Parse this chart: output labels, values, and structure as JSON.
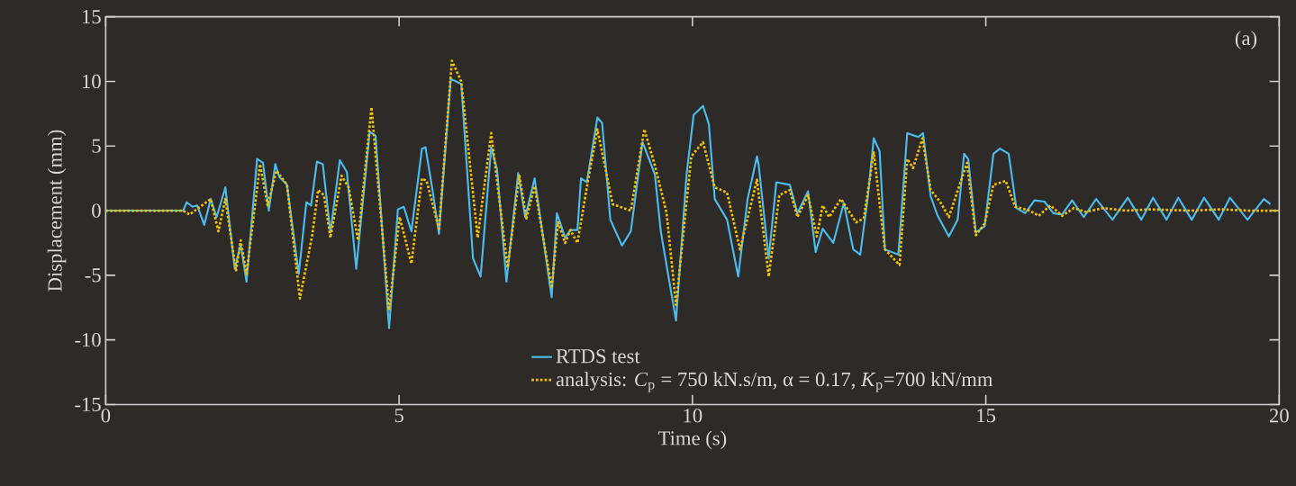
{
  "chart_data": {
    "type": "line",
    "xlabel": "Time (s)",
    "ylabel": "Displacement (mm)",
    "xlim": [
      0,
      20
    ],
    "ylim": [
      -15,
      15
    ],
    "xticks": [
      0,
      5,
      10,
      15,
      20
    ],
    "yticks": [
      -15,
      -10,
      -5,
      0,
      5,
      10,
      15
    ],
    "legend": "bottom",
    "annotations": [
      "(a)"
    ],
    "series": [
      {
        "name": "RTDS test",
        "color": "#4cbcee",
        "line_style": "solid",
        "x": [
          0,
          1.32,
          1.38,
          1.48,
          1.56,
          1.68,
          1.79,
          1.89,
          2.04,
          2.2,
          2.3,
          2.4,
          2.58,
          2.68,
          2.78,
          2.89,
          2.96,
          3.09,
          3.29,
          3.42,
          3.5,
          3.6,
          3.7,
          3.83,
          3.99,
          4.11,
          4.27,
          4.5,
          4.6,
          4.83,
          4.98,
          5.08,
          5.21,
          5.32,
          5.39,
          5.45,
          5.57,
          5.68,
          5.88,
          6.06,
          6.26,
          6.39,
          6.57,
          6.67,
          6.83,
          7.03,
          7.15,
          7.31,
          7.44,
          7.6,
          7.69,
          7.83,
          7.92,
          8.04,
          8.1,
          8.2,
          8.38,
          8.46,
          8.6,
          8.8,
          8.95,
          9.15,
          9.36,
          9.46,
          9.72,
          9.9,
          10.02,
          10.18,
          10.28,
          10.38,
          10.59,
          10.78,
          10.94,
          11.1,
          11.13,
          11.3,
          11.43,
          11.66,
          11.79,
          11.97,
          12.1,
          12.22,
          12.4,
          12.58,
          12.74,
          12.86,
          12.99,
          13.09,
          13.19,
          13.28,
          13.51,
          13.66,
          13.85,
          13.93,
          14.06,
          14.18,
          14.37,
          14.52,
          14.63,
          14.7,
          14.83,
          14.98,
          15.13,
          15.24,
          15.39,
          15.52,
          15.67,
          15.83,
          16.0,
          16.15,
          16.3,
          16.47,
          16.67,
          16.88,
          17.16,
          17.42,
          17.65,
          17.85,
          18.08,
          18.28,
          18.51,
          18.72,
          18.97,
          19.16,
          19.46,
          19.74,
          19.85
        ],
        "values": [
          0,
          0,
          0.65,
          0.3,
          0.4,
          -1.1,
          0.9,
          -0.5,
          1.8,
          -4.5,
          -2.6,
          -5.5,
          4.0,
          3.7,
          0,
          3.6,
          2.6,
          2.0,
          -4.9,
          0.65,
          0.4,
          3.8,
          3.6,
          -1.7,
          3.9,
          3.0,
          -4.5,
          6.1,
          5.8,
          -9.1,
          0.1,
          0.3,
          -1.6,
          2.3,
          4.8,
          4.9,
          1.6,
          -1.8,
          10.2,
          9.8,
          -3.7,
          -5.1,
          4.9,
          3.2,
          -5.5,
          2.9,
          -0.5,
          2.5,
          -1.6,
          -6.7,
          -0.2,
          -2.1,
          -1.5,
          -1.5,
          2.5,
          2.2,
          7.2,
          6.8,
          -0.7,
          -2.7,
          -1.6,
          5.3,
          2.8,
          -1.6,
          -8.5,
          2.8,
          7.4,
          8.1,
          6.7,
          0.9,
          -0.7,
          -5.1,
          0.9,
          4.2,
          3.5,
          -3.7,
          2.2,
          2.0,
          -0.2,
          1.5,
          -3.2,
          -1.4,
          -2.5,
          0.6,
          -3.0,
          -3.4,
          1.1,
          5.6,
          4.6,
          -3.0,
          -3.4,
          6.0,
          5.7,
          6.0,
          1.1,
          -0.4,
          -2.0,
          -0.7,
          4.4,
          4.0,
          -1.7,
          -1.2,
          4.4,
          4.8,
          4.4,
          0.2,
          -0.2,
          0.8,
          0.7,
          -0.2,
          -0.3,
          0.8,
          -0.5,
          0.9,
          -0.7,
          1.0,
          -0.7,
          1.0,
          -0.7,
          1.0,
          -0.7,
          1.0,
          -0.7,
          1.0,
          -0.7,
          0.9,
          0.5
        ]
      },
      {
        "name": "analysis: *C*$_{p}$ = 750 kN.s/m, α = 0.17, *K*$_{p}$=700 kN/mm",
        "color": "#f2c200",
        "line_style": "dotted",
        "x": [
          0,
          1.32,
          1.43,
          1.58,
          1.79,
          1.92,
          2.04,
          2.22,
          2.3,
          2.4,
          2.63,
          2.76,
          2.91,
          3.09,
          3.31,
          3.52,
          3.62,
          3.72,
          3.83,
          4.02,
          4.14,
          4.3,
          4.53,
          4.83,
          5.01,
          5.21,
          5.39,
          5.47,
          5.68,
          5.9,
          6.06,
          6.34,
          6.57,
          6.85,
          7.05,
          7.17,
          7.31,
          7.6,
          7.71,
          7.83,
          7.92,
          8.04,
          8.2,
          8.38,
          8.64,
          8.95,
          9.18,
          9.36,
          9.56,
          9.72,
          9.98,
          10.18,
          10.38,
          10.59,
          10.81,
          11.1,
          11.3,
          11.48,
          11.66,
          11.79,
          11.97,
          12.12,
          12.22,
          12.33,
          12.53,
          12.79,
          12.92,
          13.09,
          13.28,
          13.53,
          13.66,
          13.76,
          13.92,
          14.06,
          14.22,
          14.37,
          14.68,
          14.83,
          14.98,
          15.13,
          15.34,
          15.5,
          15.75,
          15.9,
          16.1,
          16.3,
          16.5,
          16.7,
          17.0,
          17.4,
          17.8,
          18.5,
          19.0,
          19.5,
          20.0
        ],
        "values": [
          0,
          0,
          -0.3,
          0.2,
          0.9,
          -1.6,
          0.9,
          -4.7,
          -2.3,
          -4.9,
          3.6,
          0.4,
          3.1,
          2.0,
          -6.8,
          -1.9,
          1.6,
          1.2,
          -2.1,
          2.7,
          1.8,
          -2.3,
          8.0,
          -7.7,
          -0.5,
          -4.1,
          2.5,
          2.3,
          -1.4,
          11.6,
          10.0,
          -2.1,
          6.0,
          -4.4,
          2.7,
          -0.6,
          1.9,
          -6.0,
          -0.9,
          -2.5,
          -1.5,
          -2.5,
          1.8,
          6.3,
          0.5,
          0.0,
          6.3,
          3.5,
          -0.2,
          -7.3,
          4.2,
          5.3,
          1.8,
          1.4,
          -3.0,
          2.4,
          -5.1,
          1.2,
          1.6,
          -0.5,
          1.2,
          -2.0,
          0.4,
          -0.5,
          0.9,
          -0.9,
          -0.6,
          4.5,
          -3.0,
          -4.2,
          4.0,
          3.3,
          5.6,
          1.6,
          0.7,
          -0.5,
          3.7,
          -1.9,
          -1.0,
          2.0,
          2.3,
          0.3,
          0.0,
          -0.4,
          0.4,
          -0.4,
          0.2,
          -0.1,
          0.2,
          0.0,
          0.1,
          0.0,
          0.1,
          0.0,
          0.0
        ]
      }
    ]
  }
}
